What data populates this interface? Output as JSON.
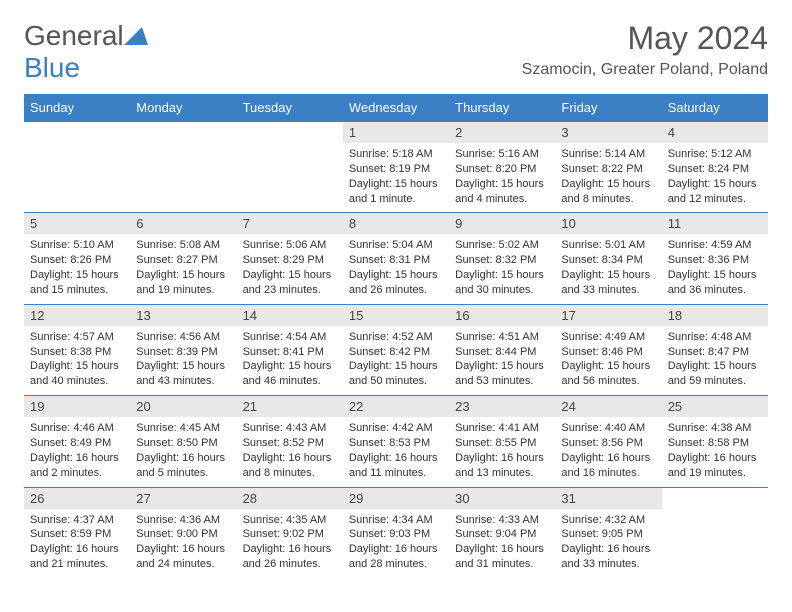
{
  "brand": {
    "part1": "General",
    "part2": "Blue"
  },
  "title": "May 2024",
  "location": "Szamocin, Greater Poland, Poland",
  "colors": {
    "accent": "#3b7fc4",
    "dayNumBg": "#e8e8e8",
    "text": "#333333",
    "headerText": "#555555"
  },
  "weekdays": [
    "Sunday",
    "Monday",
    "Tuesday",
    "Wednesday",
    "Thursday",
    "Friday",
    "Saturday"
  ],
  "weeks": [
    [
      null,
      null,
      null,
      {
        "n": "1",
        "sr": "5:18 AM",
        "ss": "8:19 PM",
        "dl": "15 hours and 1 minute."
      },
      {
        "n": "2",
        "sr": "5:16 AM",
        "ss": "8:20 PM",
        "dl": "15 hours and 4 minutes."
      },
      {
        "n": "3",
        "sr": "5:14 AM",
        "ss": "8:22 PM",
        "dl": "15 hours and 8 minutes."
      },
      {
        "n": "4",
        "sr": "5:12 AM",
        "ss": "8:24 PM",
        "dl": "15 hours and 12 minutes."
      }
    ],
    [
      {
        "n": "5",
        "sr": "5:10 AM",
        "ss": "8:26 PM",
        "dl": "15 hours and 15 minutes."
      },
      {
        "n": "6",
        "sr": "5:08 AM",
        "ss": "8:27 PM",
        "dl": "15 hours and 19 minutes."
      },
      {
        "n": "7",
        "sr": "5:06 AM",
        "ss": "8:29 PM",
        "dl": "15 hours and 23 minutes."
      },
      {
        "n": "8",
        "sr": "5:04 AM",
        "ss": "8:31 PM",
        "dl": "15 hours and 26 minutes."
      },
      {
        "n": "9",
        "sr": "5:02 AM",
        "ss": "8:32 PM",
        "dl": "15 hours and 30 minutes."
      },
      {
        "n": "10",
        "sr": "5:01 AM",
        "ss": "8:34 PM",
        "dl": "15 hours and 33 minutes."
      },
      {
        "n": "11",
        "sr": "4:59 AM",
        "ss": "8:36 PM",
        "dl": "15 hours and 36 minutes."
      }
    ],
    [
      {
        "n": "12",
        "sr": "4:57 AM",
        "ss": "8:38 PM",
        "dl": "15 hours and 40 minutes."
      },
      {
        "n": "13",
        "sr": "4:56 AM",
        "ss": "8:39 PM",
        "dl": "15 hours and 43 minutes."
      },
      {
        "n": "14",
        "sr": "4:54 AM",
        "ss": "8:41 PM",
        "dl": "15 hours and 46 minutes."
      },
      {
        "n": "15",
        "sr": "4:52 AM",
        "ss": "8:42 PM",
        "dl": "15 hours and 50 minutes."
      },
      {
        "n": "16",
        "sr": "4:51 AM",
        "ss": "8:44 PM",
        "dl": "15 hours and 53 minutes."
      },
      {
        "n": "17",
        "sr": "4:49 AM",
        "ss": "8:46 PM",
        "dl": "15 hours and 56 minutes."
      },
      {
        "n": "18",
        "sr": "4:48 AM",
        "ss": "8:47 PM",
        "dl": "15 hours and 59 minutes."
      }
    ],
    [
      {
        "n": "19",
        "sr": "4:46 AM",
        "ss": "8:49 PM",
        "dl": "16 hours and 2 minutes."
      },
      {
        "n": "20",
        "sr": "4:45 AM",
        "ss": "8:50 PM",
        "dl": "16 hours and 5 minutes."
      },
      {
        "n": "21",
        "sr": "4:43 AM",
        "ss": "8:52 PM",
        "dl": "16 hours and 8 minutes."
      },
      {
        "n": "22",
        "sr": "4:42 AM",
        "ss": "8:53 PM",
        "dl": "16 hours and 11 minutes."
      },
      {
        "n": "23",
        "sr": "4:41 AM",
        "ss": "8:55 PM",
        "dl": "16 hours and 13 minutes."
      },
      {
        "n": "24",
        "sr": "4:40 AM",
        "ss": "8:56 PM",
        "dl": "16 hours and 16 minutes."
      },
      {
        "n": "25",
        "sr": "4:38 AM",
        "ss": "8:58 PM",
        "dl": "16 hours and 19 minutes."
      }
    ],
    [
      {
        "n": "26",
        "sr": "4:37 AM",
        "ss": "8:59 PM",
        "dl": "16 hours and 21 minutes."
      },
      {
        "n": "27",
        "sr": "4:36 AM",
        "ss": "9:00 PM",
        "dl": "16 hours and 24 minutes."
      },
      {
        "n": "28",
        "sr": "4:35 AM",
        "ss": "9:02 PM",
        "dl": "16 hours and 26 minutes."
      },
      {
        "n": "29",
        "sr": "4:34 AM",
        "ss": "9:03 PM",
        "dl": "16 hours and 28 minutes."
      },
      {
        "n": "30",
        "sr": "4:33 AM",
        "ss": "9:04 PM",
        "dl": "16 hours and 31 minutes."
      },
      {
        "n": "31",
        "sr": "4:32 AM",
        "ss": "9:05 PM",
        "dl": "16 hours and 33 minutes."
      },
      null
    ]
  ],
  "labels": {
    "sunrise": "Sunrise:",
    "sunset": "Sunset:",
    "daylight": "Daylight:"
  }
}
